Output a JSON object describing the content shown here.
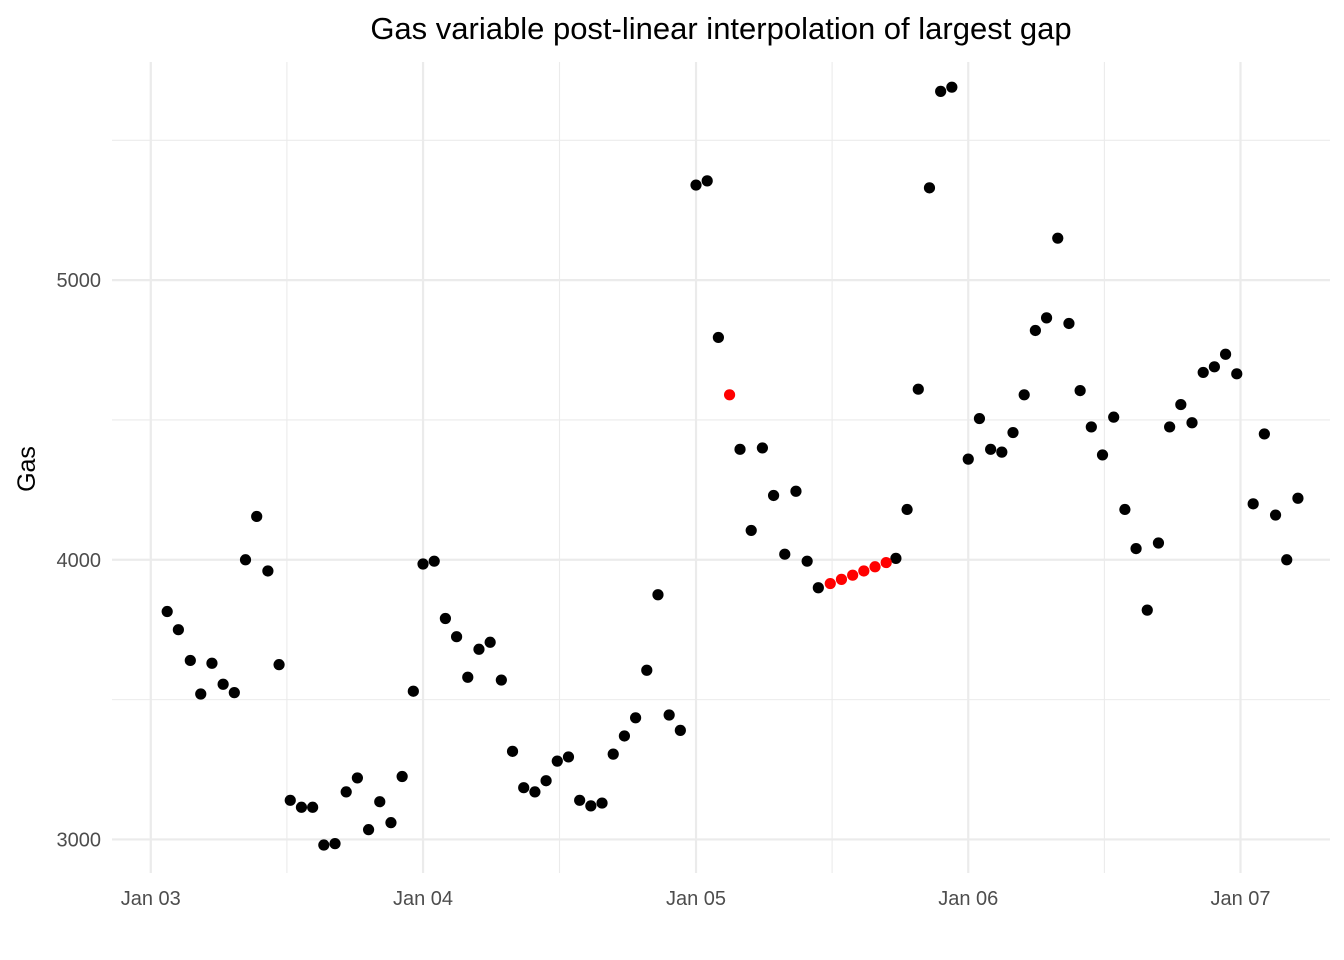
{
  "chart_data": {
    "type": "scatter",
    "title": "Gas variable post-linear interpolation of largest gap",
    "xlabel": "",
    "ylabel": "Gas",
    "x_axis": {
      "type": "date",
      "ticks": [
        "2003-01-01",
        "2004-01-01",
        "2005-01-01",
        "2006-01-01",
        "2007-01-01"
      ],
      "tick_labels": [
        "Jan 03",
        "Jan 04",
        "Jan 05",
        "Jan 06",
        "Jan 07"
      ],
      "range": [
        "2002-11-10",
        "2007-05-01"
      ]
    },
    "y_axis": {
      "ticks": [
        3000,
        4000,
        5000
      ],
      "tick_labels": [
        "3000",
        "4000",
        "5000"
      ],
      "range": [
        2880,
        5780
      ]
    },
    "grid": true,
    "legend": "none",
    "colors": {
      "observed": "#000000",
      "interpolated": "#ff0000"
    },
    "series": [
      {
        "color": "#000000",
        "points": [
          {
            "x": "2003-01-23",
            "y": 3815
          },
          {
            "x": "2003-02-07",
            "y": 3750
          },
          {
            "x": "2003-02-23",
            "y": 3640
          },
          {
            "x": "2003-03-09",
            "y": 3520
          },
          {
            "x": "2003-03-24",
            "y": 3630
          },
          {
            "x": "2003-04-08",
            "y": 3555
          },
          {
            "x": "2003-04-23",
            "y": 3525
          },
          {
            "x": "2003-05-08",
            "y": 4000
          },
          {
            "x": "2003-05-23",
            "y": 4155
          },
          {
            "x": "2003-06-07",
            "y": 3960
          },
          {
            "x": "2003-06-22",
            "y": 3625
          },
          {
            "x": "2003-07-07",
            "y": 3140
          },
          {
            "x": "2003-07-22",
            "y": 3115
          },
          {
            "x": "2003-08-06",
            "y": 3115
          },
          {
            "x": "2003-08-21",
            "y": 2980
          },
          {
            "x": "2003-09-05",
            "y": 2985
          },
          {
            "x": "2003-09-20",
            "y": 3170
          },
          {
            "x": "2003-10-05",
            "y": 3220
          },
          {
            "x": "2003-10-20",
            "y": 3035
          },
          {
            "x": "2003-11-04",
            "y": 3135
          },
          {
            "x": "2003-11-19",
            "y": 3060
          },
          {
            "x": "2003-12-04",
            "y": 3225
          },
          {
            "x": "2003-12-19",
            "y": 3530
          },
          {
            "x": "2004-01-01",
            "y": 3985
          },
          {
            "x": "2004-01-16",
            "y": 3995
          },
          {
            "x": "2004-01-31",
            "y": 3790
          },
          {
            "x": "2004-02-15",
            "y": 3725
          },
          {
            "x": "2004-03-01",
            "y": 3580
          },
          {
            "x": "2004-03-16",
            "y": 3680
          },
          {
            "x": "2004-03-31",
            "y": 3705
          },
          {
            "x": "2004-04-15",
            "y": 3570
          },
          {
            "x": "2004-04-30",
            "y": 3315
          },
          {
            "x": "2004-05-15",
            "y": 3185
          },
          {
            "x": "2004-05-30",
            "y": 3170
          },
          {
            "x": "2004-06-14",
            "y": 3210
          },
          {
            "x": "2004-06-29",
            "y": 3280
          },
          {
            "x": "2004-07-14",
            "y": 3295
          },
          {
            "x": "2004-07-29",
            "y": 3140
          },
          {
            "x": "2004-08-13",
            "y": 3120
          },
          {
            "x": "2004-08-28",
            "y": 3130
          },
          {
            "x": "2004-09-12",
            "y": 3305
          },
          {
            "x": "2004-09-27",
            "y": 3370
          },
          {
            "x": "2004-10-12",
            "y": 3435
          },
          {
            "x": "2004-10-27",
            "y": 3605
          },
          {
            "x": "2004-11-11",
            "y": 3875
          },
          {
            "x": "2004-11-26",
            "y": 3445
          },
          {
            "x": "2004-12-11",
            "y": 3390
          },
          {
            "x": "2005-01-01",
            "y": 5340
          },
          {
            "x": "2005-01-16",
            "y": 5355
          },
          {
            "x": "2005-01-31",
            "y": 4795
          },
          {
            "x": "2005-03-01",
            "y": 4395
          },
          {
            "x": "2005-03-16",
            "y": 4105
          },
          {
            "x": "2005-03-31",
            "y": 4400
          },
          {
            "x": "2005-04-15",
            "y": 4230
          },
          {
            "x": "2005-04-30",
            "y": 4020
          },
          {
            "x": "2005-05-15",
            "y": 4245
          },
          {
            "x": "2005-05-30",
            "y": 3995
          },
          {
            "x": "2005-06-14",
            "y": 3900
          },
          {
            "x": "2005-09-26",
            "y": 4005
          },
          {
            "x": "2005-10-11",
            "y": 4180
          },
          {
            "x": "2005-10-26",
            "y": 4610
          },
          {
            "x": "2005-11-10",
            "y": 5330
          },
          {
            "x": "2005-11-25",
            "y": 5675
          },
          {
            "x": "2005-12-10",
            "y": 5690
          },
          {
            "x": "2006-01-01",
            "y": 4360
          },
          {
            "x": "2006-01-16",
            "y": 4505
          },
          {
            "x": "2006-01-31",
            "y": 4395
          },
          {
            "x": "2006-02-15",
            "y": 4385
          },
          {
            "x": "2006-03-02",
            "y": 4455
          },
          {
            "x": "2006-03-17",
            "y": 4590
          },
          {
            "x": "2006-04-01",
            "y": 4820
          },
          {
            "x": "2006-04-16",
            "y": 4865
          },
          {
            "x": "2006-05-01",
            "y": 5150
          },
          {
            "x": "2006-05-16",
            "y": 4845
          },
          {
            "x": "2006-05-31",
            "y": 4605
          },
          {
            "x": "2006-06-15",
            "y": 4475
          },
          {
            "x": "2006-06-30",
            "y": 4375
          },
          {
            "x": "2006-07-15",
            "y": 4510
          },
          {
            "x": "2006-07-30",
            "y": 4180
          },
          {
            "x": "2006-08-14",
            "y": 4040
          },
          {
            "x": "2006-08-29",
            "y": 3820
          },
          {
            "x": "2006-09-13",
            "y": 4060
          },
          {
            "x": "2006-09-28",
            "y": 4475
          },
          {
            "x": "2006-10-13",
            "y": 4555
          },
          {
            "x": "2006-10-28",
            "y": 4490
          },
          {
            "x": "2006-11-12",
            "y": 4670
          },
          {
            "x": "2006-11-27",
            "y": 4690
          },
          {
            "x": "2006-12-12",
            "y": 4735
          },
          {
            "x": "2006-12-27",
            "y": 4665
          },
          {
            "x": "2007-01-18",
            "y": 4200
          },
          {
            "x": "2007-02-02",
            "y": 4450
          },
          {
            "x": "2007-02-17",
            "y": 4160
          },
          {
            "x": "2007-03-04",
            "y": 4000
          },
          {
            "x": "2007-03-19",
            "y": 4220
          }
        ]
      },
      {
        "color": "#ff0000",
        "points": [
          {
            "x": "2005-02-15",
            "y": 4590
          },
          {
            "x": "2005-06-30",
            "y": 3915
          },
          {
            "x": "2005-07-15",
            "y": 3930
          },
          {
            "x": "2005-07-30",
            "y": 3945
          },
          {
            "x": "2005-08-14",
            "y": 3960
          },
          {
            "x": "2005-08-29",
            "y": 3975
          },
          {
            "x": "2005-09-13",
            "y": 3990
          }
        ]
      }
    ]
  }
}
